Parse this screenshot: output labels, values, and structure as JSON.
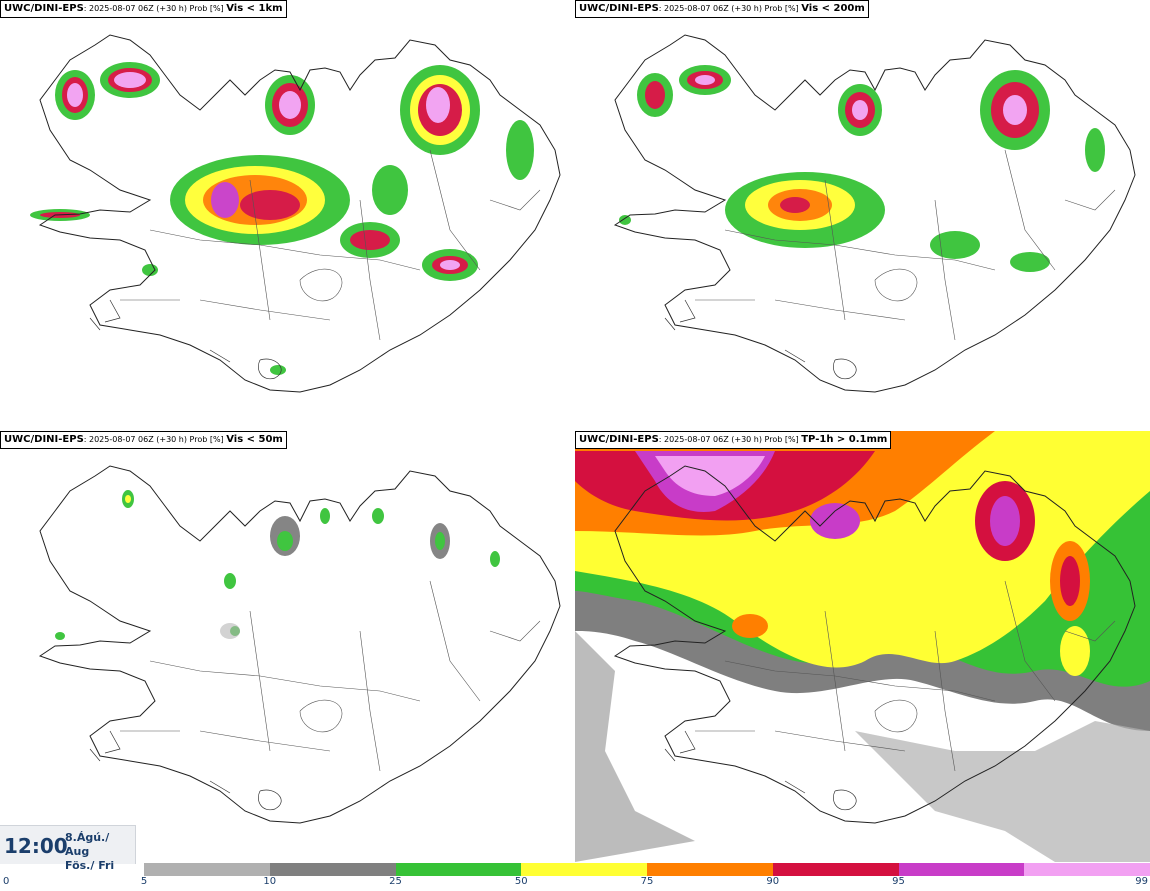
{
  "panels": [
    {
      "source": "UWC/DINI-EPS",
      "meta": ": 2025-08-07 06Z (+30 h) Prob [%] ",
      "variable": "Vis < 1km"
    },
    {
      "source": "UWC/DINI-EPS",
      "meta": ": 2025-08-07 06Z (+30 h) Prob [%] ",
      "variable": "Vis < 200m"
    },
    {
      "source": "UWC/DINI-EPS",
      "meta": ": 2025-08-07 06Z (+30 h) Prob [%] ",
      "variable": "Vis < 50m"
    },
    {
      "source": "UWC/DINI-EPS",
      "meta": ": 2025-08-07 06Z (+30 h) Prob [%] ",
      "variable": "TP-1h > 0.1mm"
    }
  ],
  "time": {
    "clock": "12:00",
    "date_line1": "8.Ágú./ Aug",
    "date_line2": "Fös./ Fri"
  },
  "colorbar": {
    "ticks": [
      "0",
      "5",
      "10",
      "25",
      "50",
      "75",
      "90",
      "95",
      "99"
    ],
    "colors": [
      "#b0b0b0",
      "#7f7f7f",
      "#36c236",
      "#ffff33",
      "#ff7f00",
      "#d4103f",
      "#c83cc8",
      "#f2a0f2"
    ]
  },
  "palette": {
    "coast": "#222222",
    "p25": "#36c236",
    "p50": "#ffff33",
    "p75": "#ff7f00",
    "p90": "#d4103f",
    "p95": "#c83cc8",
    "p99": "#f2a0f2",
    "p5": "#b0b0b0",
    "p10": "#7f7f7f"
  }
}
